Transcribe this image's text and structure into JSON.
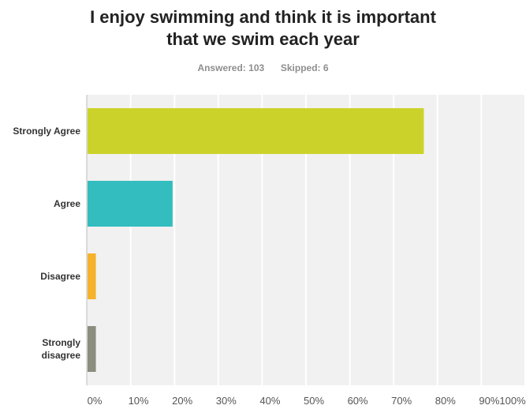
{
  "survey": {
    "title_line1": "I enjoy swimming and think it is important",
    "title_line2": "that we swim each year",
    "answered_label": "Answered:",
    "answered_value": "103",
    "skipped_label": "Skipped:",
    "skipped_value": "6"
  },
  "chart_data": {
    "type": "bar",
    "orientation": "horizontal",
    "title": "I enjoy swimming and think it is important that we swim each year",
    "categories": [
      "Strongly Agree",
      "Agree",
      "Disagree",
      "Strongly disagree"
    ],
    "category_lines": [
      [
        "Strongly Agree"
      ],
      [
        "Agree"
      ],
      [
        "Disagree"
      ],
      [
        "Strongly",
        "disagree"
      ]
    ],
    "values": [
      76.7,
      19.4,
      1.9,
      1.9
    ],
    "colors": [
      "#cbd32a",
      "#33bdbf",
      "#f5b22a",
      "#8b8d7e"
    ],
    "xlim": [
      0,
      100
    ],
    "x_ticks": [
      "0%",
      "10%",
      "20%",
      "30%",
      "40%",
      "50%",
      "60%",
      "70%",
      "80%",
      "90%",
      "100%"
    ],
    "grid": true,
    "legend": "none",
    "xlabel": "",
    "ylabel": ""
  }
}
